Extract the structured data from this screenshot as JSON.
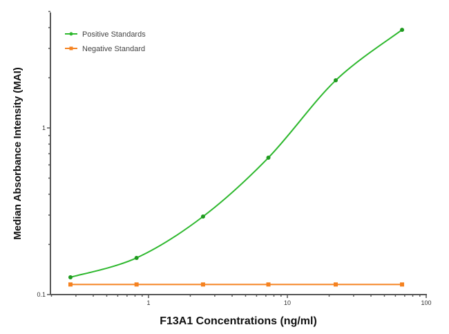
{
  "chart_data": {
    "type": "line",
    "title": "",
    "xlabel": "F13A1 Concentrations (ng/ml)",
    "ylabel": "Median Absorbance Intensity (MAI)",
    "xscale": "log",
    "yscale": "log",
    "xlim": [
      0.2,
      100
    ],
    "ylim": [
      0.1,
      5
    ],
    "x_ticks": [
      1,
      10,
      100
    ],
    "x_tick_labels": [
      "1",
      "10",
      "100"
    ],
    "y_ticks": [
      0.1,
      1
    ],
    "y_tick_labels": [
      "0.1",
      "1"
    ],
    "grid": false,
    "legend_position": "upper left",
    "x": [
      0.274,
      0.82,
      2.47,
      7.3,
      22.3,
      67
    ],
    "series": [
      {
        "name": "Positive Standards",
        "color": "#2eb82e",
        "marker": "circle",
        "fit": "4PL curve",
        "values": [
          0.127,
          0.166,
          0.294,
          0.663,
          1.93,
          3.88
        ]
      },
      {
        "name": "Negative Standard",
        "color": "#f58220",
        "marker": "square",
        "values": [
          0.115,
          0.115,
          0.115,
          0.115,
          0.115,
          0.115
        ]
      }
    ]
  },
  "legend": {
    "items": [
      {
        "label": "Positive Standards",
        "color": "#2eb82e"
      },
      {
        "label": "Negative Standard",
        "color": "#f58220"
      }
    ]
  },
  "axes": {
    "x_title": "F13A1 Concentrations (ng/ml)",
    "y_title": "Median Absorbance Intensity (MAI)",
    "x_tick_labels": [
      "1",
      "10",
      "100"
    ],
    "y_tick_labels": [
      "0.1",
      "1"
    ]
  }
}
